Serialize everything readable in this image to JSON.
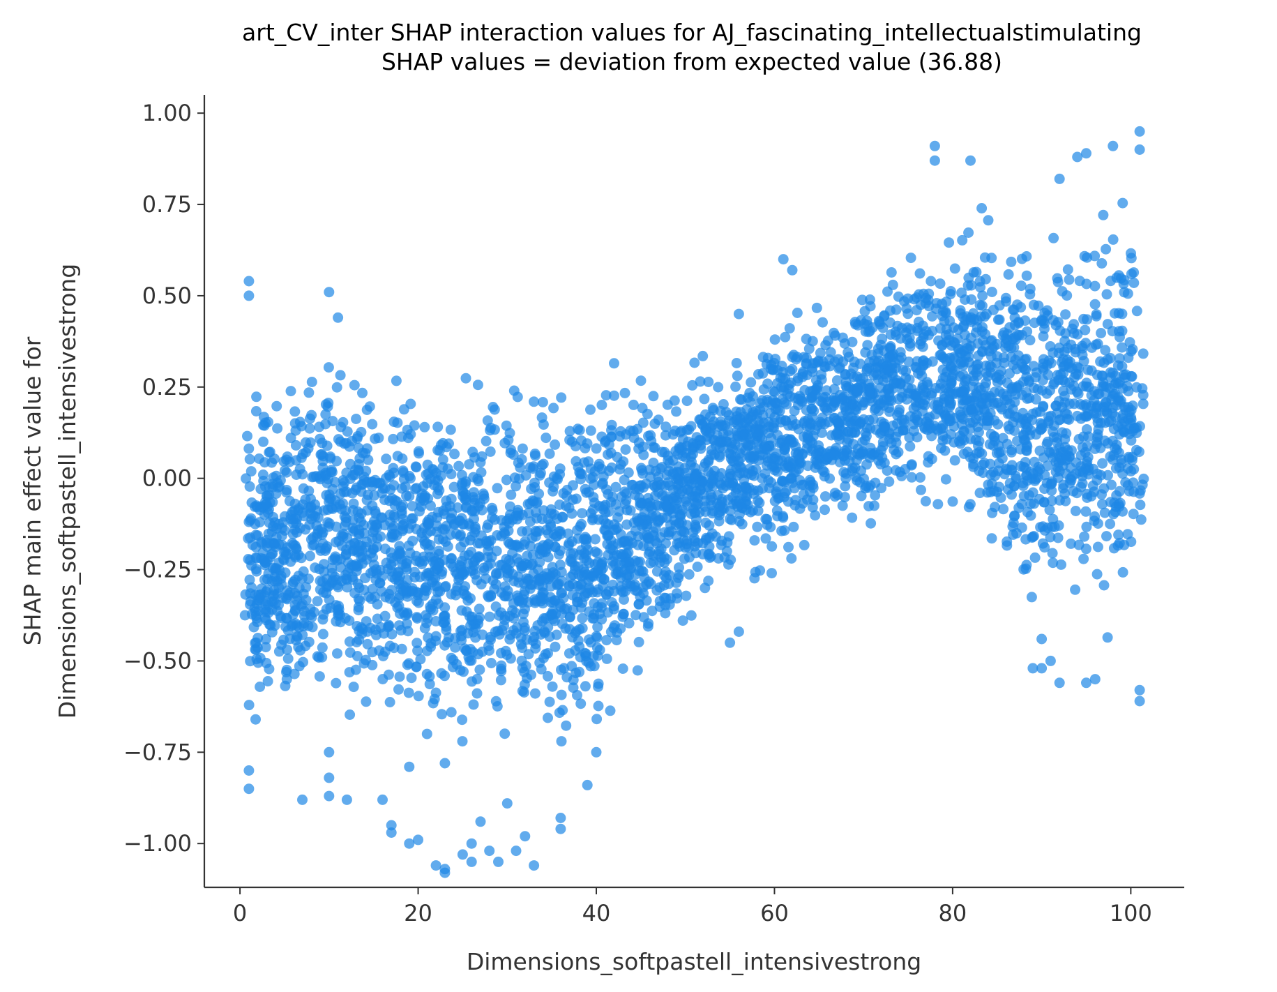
{
  "chart_data": {
    "type": "scatter",
    "title": "art_CV_inter SHAP interaction values for AJ_fascinating_intellectualstimulating",
    "subtitle": "SHAP values = deviation from expected value (36.88)",
    "xlabel": "Dimensions_softpastell_intensivestrong",
    "ylabel_lines": [
      "SHAP main effect value for",
      "Dimensions_softpastell_intensivestrong"
    ],
    "xlim": [
      -4,
      106
    ],
    "ylim": [
      -1.12,
      1.05
    ],
    "xticks": [
      0,
      20,
      40,
      60,
      80,
      100
    ],
    "xtick_labels": [
      "0",
      "20",
      "40",
      "60",
      "80",
      "100"
    ],
    "yticks": [
      1.0,
      0.75,
      0.5,
      0.25,
      0.0,
      -0.25,
      -0.5,
      -0.75,
      -1.0
    ],
    "ytick_labels": [
      "1.00",
      "0.75",
      "0.50",
      "0.25",
      "0.00",
      "−0.25",
      "−0.50",
      "−0.75",
      "−1.00"
    ],
    "grid": false,
    "point_color": "#1e88e5",
    "point_alpha": 0.7,
    "x_domain": [
      1,
      101
    ],
    "approx_point_count": 4200,
    "trend": [
      {
        "x": 1,
        "center": -0.2,
        "spread": 0.35
      },
      {
        "x": 10,
        "center": -0.15,
        "spread": 0.35
      },
      {
        "x": 20,
        "center": -0.2,
        "spread": 0.38
      },
      {
        "x": 30,
        "center": -0.25,
        "spread": 0.38
      },
      {
        "x": 40,
        "center": -0.2,
        "spread": 0.35
      },
      {
        "x": 50,
        "center": -0.05,
        "spread": 0.25
      },
      {
        "x": 60,
        "center": 0.1,
        "spread": 0.25
      },
      {
        "x": 70,
        "center": 0.2,
        "spread": 0.25
      },
      {
        "x": 80,
        "center": 0.3,
        "spread": 0.3
      },
      {
        "x": 90,
        "center": 0.15,
        "spread": 0.38
      },
      {
        "x": 101,
        "center": 0.2,
        "spread": 0.4
      }
    ],
    "outliers": [
      {
        "x": 1,
        "y": 0.54
      },
      {
        "x": 1,
        "y": 0.5
      },
      {
        "x": 10,
        "y": 0.51
      },
      {
        "x": 11,
        "y": 0.44
      },
      {
        "x": 1,
        "y": -0.8
      },
      {
        "x": 1,
        "y": -0.85
      },
      {
        "x": 7,
        "y": -0.88
      },
      {
        "x": 10,
        "y": -0.75
      },
      {
        "x": 10,
        "y": -0.82
      },
      {
        "x": 10,
        "y": -0.87
      },
      {
        "x": 12,
        "y": -0.88
      },
      {
        "x": 16,
        "y": -0.88
      },
      {
        "x": 17,
        "y": -0.95
      },
      {
        "x": 17,
        "y": -0.97
      },
      {
        "x": 19,
        "y": -1.0
      },
      {
        "x": 20,
        "y": -0.99
      },
      {
        "x": 22,
        "y": -1.06
      },
      {
        "x": 23,
        "y": -1.07
      },
      {
        "x": 23,
        "y": -1.08
      },
      {
        "x": 25,
        "y": -1.03
      },
      {
        "x": 26,
        "y": -1.0
      },
      {
        "x": 26,
        "y": -1.05
      },
      {
        "x": 27,
        "y": -0.94
      },
      {
        "x": 28,
        "y": -1.02
      },
      {
        "x": 29,
        "y": -1.05
      },
      {
        "x": 30,
        "y": -0.89
      },
      {
        "x": 31,
        "y": -1.02
      },
      {
        "x": 32,
        "y": -0.98
      },
      {
        "x": 33,
        "y": -1.06
      },
      {
        "x": 36,
        "y": -0.93
      },
      {
        "x": 36,
        "y": -0.96
      },
      {
        "x": 39,
        "y": -0.84
      },
      {
        "x": 40,
        "y": -0.75
      },
      {
        "x": 21,
        "y": -0.7
      },
      {
        "x": 23,
        "y": -0.78
      },
      {
        "x": 19,
        "y": -0.79
      },
      {
        "x": 78,
        "y": 0.91
      },
      {
        "x": 78,
        "y": 0.87
      },
      {
        "x": 82,
        "y": 0.87
      },
      {
        "x": 98,
        "y": 0.91
      },
      {
        "x": 101,
        "y": 0.95
      },
      {
        "x": 101,
        "y": 0.9
      },
      {
        "x": 95,
        "y": 0.89
      },
      {
        "x": 94,
        "y": 0.88
      },
      {
        "x": 92,
        "y": 0.82
      },
      {
        "x": 89,
        "y": -0.52
      },
      {
        "x": 90,
        "y": -0.52
      },
      {
        "x": 91,
        "y": -0.5
      },
      {
        "x": 92,
        "y": -0.56
      },
      {
        "x": 95,
        "y": -0.56
      },
      {
        "x": 96,
        "y": -0.55
      },
      {
        "x": 101,
        "y": -0.58
      },
      {
        "x": 101,
        "y": -0.61
      },
      {
        "x": 90,
        "y": -0.44
      },
      {
        "x": 56,
        "y": 0.45
      },
      {
        "x": 61,
        "y": 0.6
      },
      {
        "x": 62,
        "y": 0.57
      },
      {
        "x": 55,
        "y": -0.45
      },
      {
        "x": 56,
        "y": -0.42
      }
    ]
  }
}
